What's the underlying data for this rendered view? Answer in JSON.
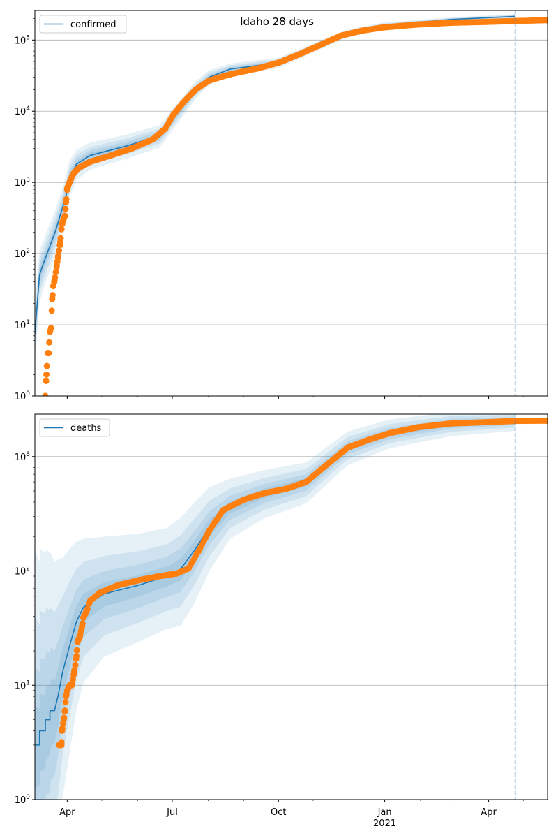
{
  "chart_data": [
    {
      "type": "line",
      "title": "Idaho 28 days",
      "yscale": "log",
      "ylim": [
        1,
        260000
      ],
      "x_units": "days since 2020-03-04",
      "xlim": [
        0,
        444
      ],
      "legend": {
        "label": "confirmed",
        "placement": "top-left"
      },
      "forecast_start_day": 416,
      "grid": "y-major",
      "y_ticks": [
        {
          "v": 1,
          "exp": "0"
        },
        {
          "v": 10,
          "exp": "1"
        },
        {
          "v": 100,
          "exp": "2"
        },
        {
          "v": 1000,
          "exp": "3"
        },
        {
          "v": 10000,
          "exp": "4"
        },
        {
          "v": 100000,
          "exp": "5"
        }
      ],
      "model": {
        "name": "confirmed",
        "x": [
          0,
          4,
          7,
          18,
          27,
          30,
          36,
          48,
          78,
          108,
          120,
          139,
          151,
          169,
          211,
          271,
          301,
          361,
          416
        ],
        "y": [
          7.5,
          50,
          70,
          210,
          650,
          1150,
          1800,
          2400,
          3200,
          4500,
          8000,
          20000,
          30000,
          39000,
          48000,
          125000,
          160000,
          195000,
          215000
        ],
        "band_log10_width": [
          0.4,
          0.35,
          0.33,
          0.3,
          0.28,
          0.25,
          0.2,
          0.18,
          0.16,
          0.15,
          0.14,
          0.12,
          0.1,
          0.08,
          0.07,
          0.05,
          0.04,
          0.03,
          0.03
        ]
      },
      "observed": {
        "name": "observed confirmed",
        "x": [
          9,
          10,
          11,
          12,
          13,
          14,
          15,
          16,
          17,
          19,
          20,
          22,
          23,
          24,
          26,
          27,
          28,
          30,
          33,
          38,
          48,
          66,
          84,
          102,
          113,
          120,
          128,
          139,
          151,
          169,
          193,
          211,
          229,
          247,
          265,
          283,
          301,
          331,
          361,
          392,
          416,
          443
        ],
        "y": [
          1,
          2,
          4,
          4,
          8,
          9,
          23,
          35,
          42,
          68,
          88,
          145,
          220,
          280,
          340,
          530,
          820,
          1000,
          1300,
          1600,
          1950,
          2400,
          3000,
          4000,
          5700,
          9000,
          13000,
          20000,
          27000,
          33000,
          40000,
          48000,
          63000,
          85000,
          115000,
          135000,
          150000,
          165000,
          175000,
          180000,
          185000,
          190000
        ]
      }
    },
    {
      "type": "line",
      "title": "",
      "yscale": "log",
      "ylim": [
        1,
        2350
      ],
      "x_units": "days since 2020-03-04",
      "xlim": [
        0,
        444
      ],
      "legend": {
        "label": "deaths",
        "placement": "top-left"
      },
      "forecast_start_day": 416,
      "grid": "y-major",
      "y_ticks": [
        {
          "v": 1,
          "exp": "0"
        },
        {
          "v": 10,
          "exp": "1"
        },
        {
          "v": 100,
          "exp": "2"
        },
        {
          "v": 1000,
          "exp": "3"
        }
      ],
      "x_ticks": [
        {
          "day": 28,
          "label": "Apr",
          "sub": ""
        },
        {
          "day": 119,
          "label": "Jul",
          "sub": ""
        },
        {
          "day": 211,
          "label": "Oct",
          "sub": ""
        },
        {
          "day": 303,
          "label": "Jan",
          "sub": "2021"
        },
        {
          "day": 393,
          "label": "Apr",
          "sub": ""
        }
      ],
      "x_minor_ticks": [
        58,
        89,
        150,
        181,
        241,
        272,
        334,
        362,
        423
      ],
      "model": {
        "name": "deaths",
        "x": [
          0,
          4,
          4.1,
          9,
          9.1,
          13,
          13.1,
          17,
          20,
          24,
          30,
          36,
          42,
          60,
          90,
          114,
          126,
          138,
          151,
          169,
          199,
          235,
          271,
          307,
          361,
          416
        ],
        "y": [
          3,
          3,
          4,
          4,
          5,
          5,
          6,
          6,
          8,
          13,
          22,
          36,
          48,
          63,
          75,
          90,
          103,
          150,
          240,
          360,
          480,
          600,
          1200,
          1600,
          1950,
          2050
        ],
        "band_log10_width": [
          1.7,
          1.6,
          1.6,
          1.55,
          1.5,
          1.45,
          1.4,
          1.3,
          1.2,
          1.0,
          0.85,
          0.7,
          0.6,
          0.5,
          0.45,
          0.42,
          0.45,
          0.42,
          0.35,
          0.25,
          0.2,
          0.17,
          0.14,
          0.12,
          0.1,
          0.08
        ]
      },
      "observed": {
        "name": "observed deaths",
        "x": [
          21,
          23,
          23.5,
          25,
          26,
          27,
          28,
          30,
          32,
          34,
          35,
          36,
          37,
          39,
          41,
          42,
          45,
          48,
          57,
          72,
          90,
          108,
          123,
          133,
          142,
          151,
          163,
          181,
          199,
          217,
          235,
          253,
          271,
          289,
          307,
          331,
          361,
          392,
          416,
          443
        ],
        "y": [
          3,
          3,
          4,
          5,
          6,
          8,
          9,
          10,
          10,
          13,
          15,
          18,
          24,
          27,
          33,
          39,
          45,
          55,
          65,
          75,
          83,
          90,
          95,
          105,
          150,
          225,
          340,
          420,
          480,
          520,
          600,
          850,
          1200,
          1400,
          1600,
          1800,
          1950,
          2000,
          2050,
          2060
        ]
      }
    }
  ],
  "colors": {
    "model": "#1f77b4",
    "observed": "#ff7f0e",
    "band": "#1f77b4",
    "grid": "#b0b0b0"
  }
}
